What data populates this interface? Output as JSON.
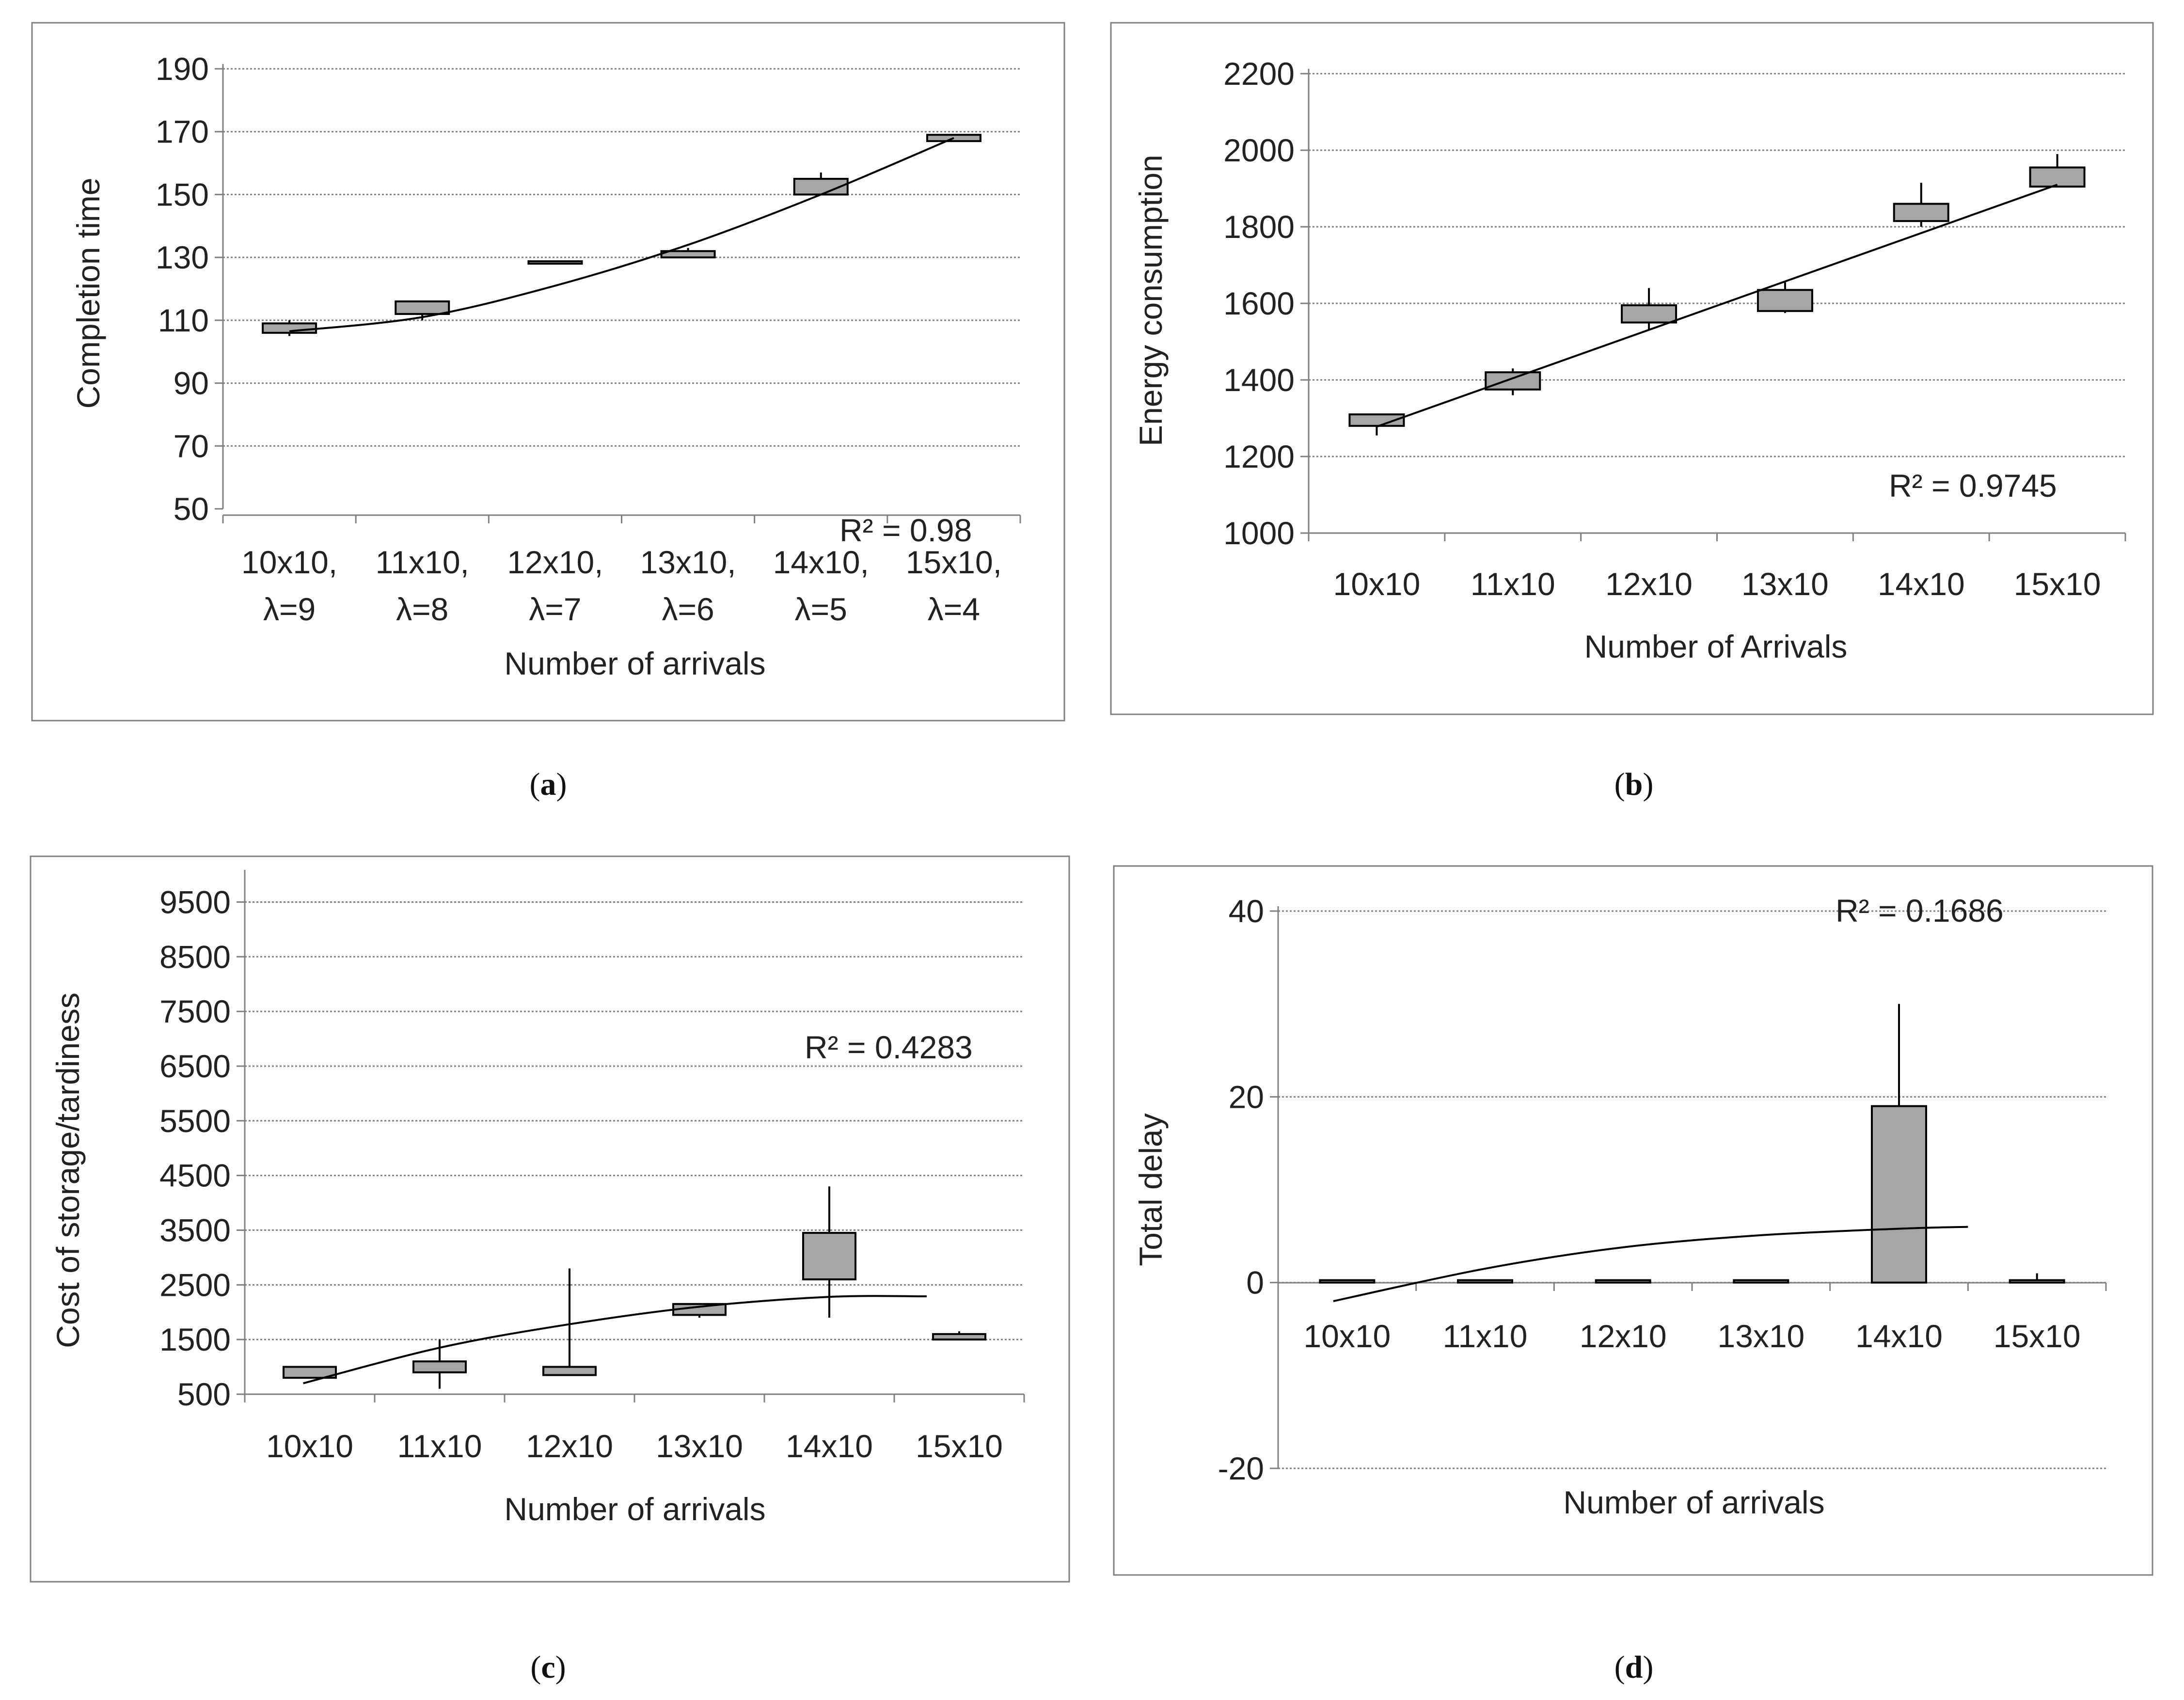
{
  "chart_data": [
    {
      "type": "box",
      "caption_letter": "a",
      "ylabel": "Completion time",
      "xlabel": "Number of arrivals",
      "ylim": [
        50,
        190
      ],
      "yticks": [
        50,
        70,
        90,
        110,
        130,
        150,
        170,
        190
      ],
      "categories": [
        "10x10,\nλ=9",
        "11x10,\nλ=8",
        "12x10,\nλ=7",
        "13x10,\nλ=6",
        "14x10,\nλ=5",
        "15x10,\nλ=4"
      ],
      "boxes": [
        {
          "q1": 106,
          "q3": 109,
          "whisker_low": 105,
          "whisker_high": 110
        },
        {
          "q1": 112,
          "q3": 116,
          "whisker_low": 110,
          "whisker_high": 116
        },
        {
          "q1": 128,
          "q3": 128,
          "whisker_low": 128,
          "whisker_high": 128
        },
        {
          "q1": 130,
          "q3": 132,
          "whisker_low": 130,
          "whisker_high": 133
        },
        {
          "q1": 150,
          "q3": 155,
          "whisker_low": 150,
          "whisker_high": 157
        },
        {
          "q1": 167,
          "q3": 169,
          "whisker_low": 167,
          "whisker_high": 169
        }
      ],
      "trendline": {
        "kind": "polynomial",
        "points": [
          [
            0.0,
            106.5
          ],
          [
            1.0,
            111.0
          ],
          [
            2.0,
            121.0
          ],
          [
            3.0,
            134.0
          ],
          [
            4.0,
            150.0
          ],
          [
            5.0,
            168.0
          ]
        ]
      },
      "r_squared": "R² = 0.98"
    },
    {
      "type": "box",
      "caption_letter": "b",
      "ylabel": "Energy consumption",
      "xlabel": "Number of Arrivals",
      "ylim": [
        1000,
        2200
      ],
      "yticks": [
        1000,
        1200,
        1400,
        1600,
        1800,
        2000,
        2200
      ],
      "categories": [
        "10x10",
        "11x10",
        "12x10",
        "13x10",
        "14x10",
        "15x10"
      ],
      "boxes": [
        {
          "q1": 1280,
          "q3": 1310,
          "whisker_low": 1255,
          "whisker_high": 1310
        },
        {
          "q1": 1375,
          "q3": 1420,
          "whisker_low": 1360,
          "whisker_high": 1430
        },
        {
          "q1": 1550,
          "q3": 1595,
          "whisker_low": 1530,
          "whisker_high": 1640
        },
        {
          "q1": 1580,
          "q3": 1635,
          "whisker_low": 1575,
          "whisker_high": 1655
        },
        {
          "q1": 1815,
          "q3": 1860,
          "whisker_low": 1800,
          "whisker_high": 1915
        },
        {
          "q1": 1905,
          "q3": 1955,
          "whisker_low": 1905,
          "whisker_high": 1990
        }
      ],
      "trendline": {
        "kind": "linear",
        "points": [
          [
            0.0,
            1278
          ],
          [
            5.0,
            1910
          ]
        ]
      },
      "r_squared": "R² = 0.9745"
    },
    {
      "type": "box",
      "caption_letter": "c",
      "ylabel": "Cost of storage/tardiness",
      "xlabel": "Number of arrivals",
      "ylim": [
        500,
        10000
      ],
      "yticks": [
        500,
        1500,
        2500,
        3500,
        4500,
        5500,
        6500,
        7500,
        8500,
        9500
      ],
      "categories": [
        "10x10",
        "11x10",
        "12x10",
        "13x10",
        "14x10",
        "15x10"
      ],
      "boxes": [
        {
          "q1": 800,
          "q3": 1000,
          "whisker_low": 800,
          "whisker_high": 1000
        },
        {
          "q1": 900,
          "q3": 1100,
          "whisker_low": 600,
          "whisker_high": 1500
        },
        {
          "q1": 850,
          "q3": 1000,
          "whisker_low": 850,
          "whisker_high": 2800
        },
        {
          "q1": 1950,
          "q3": 2150,
          "whisker_low": 1900,
          "whisker_high": 2150
        },
        {
          "q1": 2600,
          "q3": 3450,
          "whisker_low": 1900,
          "whisker_high": 4300
        },
        {
          "q1": 1500,
          "q3": 1600,
          "whisker_low": 1500,
          "whisker_high": 1650
        }
      ],
      "trendline": {
        "kind": "polynomial",
        "points": [
          [
            -0.05,
            700
          ],
          [
            1.0,
            1350
          ],
          [
            2.0,
            1780
          ],
          [
            3.0,
            2100
          ],
          [
            4.0,
            2280
          ],
          [
            4.75,
            2290
          ]
        ]
      },
      "r_squared": "R² = 0.4283"
    },
    {
      "type": "box",
      "caption_letter": "d",
      "ylabel": "Total delay",
      "xlabel": "Number of arrivals",
      "ylim": [
        -20,
        40
      ],
      "yticks": [
        -20,
        0,
        20,
        40
      ],
      "categories": [
        "10x10",
        "11x10",
        "12x10",
        "13x10",
        "14x10",
        "15x10"
      ],
      "boxes": [
        {
          "q1": 0,
          "q3": 0,
          "whisker_low": 0,
          "whisker_high": 0
        },
        {
          "q1": 0,
          "q3": 0,
          "whisker_low": 0,
          "whisker_high": 0
        },
        {
          "q1": 0,
          "q3": 0,
          "whisker_low": 0,
          "whisker_high": 0
        },
        {
          "q1": 0,
          "q3": 0,
          "whisker_low": 0,
          "whisker_high": 0
        },
        {
          "q1": 0,
          "q3": 19,
          "whisker_low": 0,
          "whisker_high": 30
        },
        {
          "q1": 0,
          "q3": 0,
          "whisker_low": 0,
          "whisker_high": 1
        }
      ],
      "trendline": {
        "kind": "polynomial",
        "points": [
          [
            -0.1,
            -2.0
          ],
          [
            1.0,
            1.5
          ],
          [
            2.0,
            3.8
          ],
          [
            3.0,
            5.1
          ],
          [
            4.0,
            5.8
          ],
          [
            4.5,
            6.0
          ]
        ]
      },
      "r_squared": "R² = 0.1686"
    }
  ],
  "colors": {
    "box_fill": "#a6a6a6",
    "stroke": "#000000",
    "grid": "#808080",
    "frame": "#808080",
    "text": "#222222"
  }
}
